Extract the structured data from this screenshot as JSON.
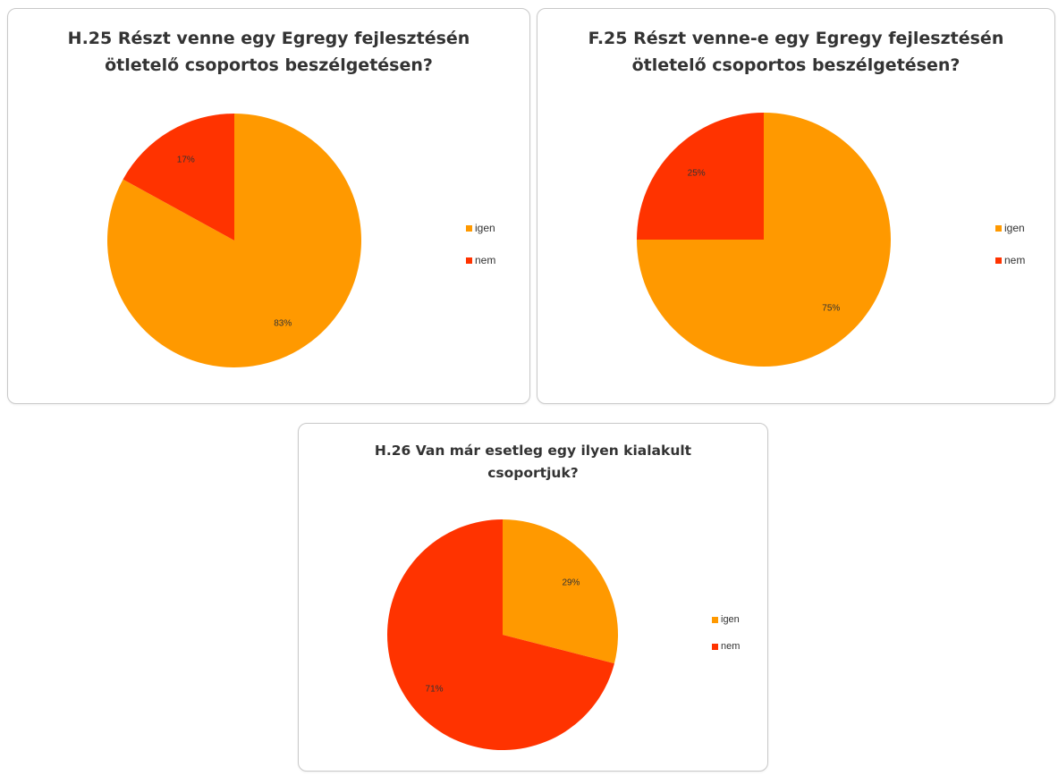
{
  "colors": {
    "igen": "#FF9900",
    "nem": "#FF3300"
  },
  "chart_data": [
    {
      "type": "pie",
      "title": [
        "H.25 Részt venne egy Egregy fejlesztésén",
        "ötletelő csoportos beszélgetésen?"
      ],
      "categories": [
        "igen",
        "nem"
      ],
      "values": [
        83,
        17
      ],
      "labels": [
        "83%",
        "17%"
      ],
      "legend": [
        "igen",
        "nem"
      ],
      "legend_position": "right"
    },
    {
      "type": "pie",
      "title": [
        "F.25 Részt venne-e egy Egregy fejlesztésén",
        "ötletelő csoportos beszélgetésen?"
      ],
      "categories": [
        "igen",
        "nem"
      ],
      "values": [
        75,
        25
      ],
      "labels": [
        "75%",
        "25%"
      ],
      "legend": [
        "igen",
        "nem"
      ],
      "legend_position": "right"
    },
    {
      "type": "pie",
      "title": [
        "H.26 Van már esetleg  egy ilyen kialakult",
        "csoportjuk?"
      ],
      "categories": [
        "igen",
        "nem"
      ],
      "values": [
        29,
        71
      ],
      "labels": [
        "29%",
        "71%"
      ],
      "legend": [
        "igen",
        "nem"
      ],
      "legend_position": "right"
    }
  ]
}
